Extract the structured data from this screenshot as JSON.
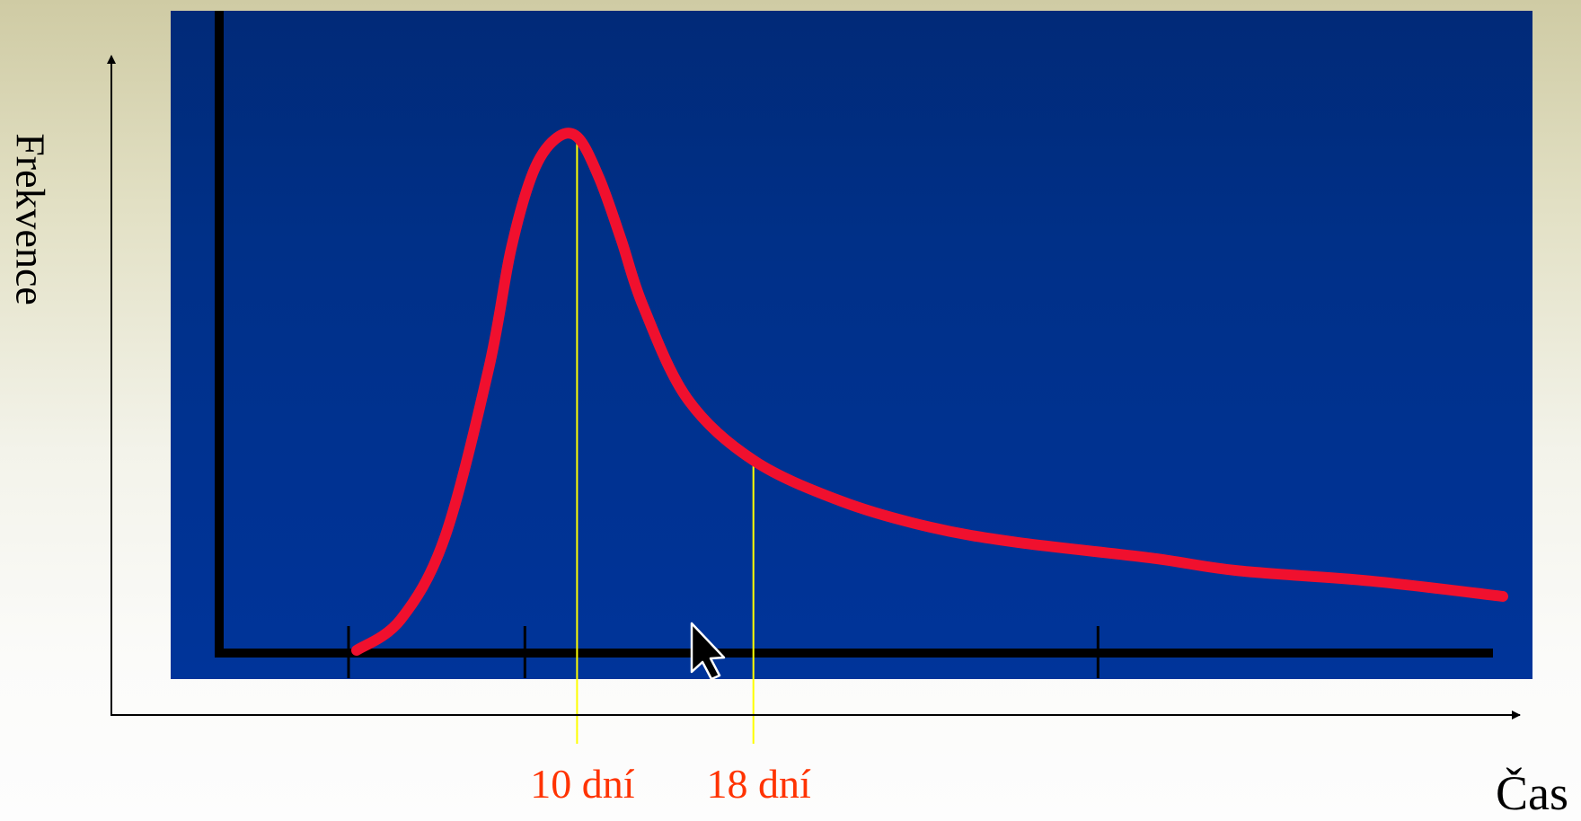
{
  "chart_data": {
    "type": "line",
    "title": "",
    "xlabel": "Čas",
    "ylabel": "Frekvence",
    "grid": false,
    "legend": null,
    "series": [
      {
        "points": [
          [
            0,
            0
          ],
          [
            2,
            6
          ],
          [
            4,
            22
          ],
          [
            6,
            55
          ],
          [
            7,
            78
          ],
          [
            8,
            93
          ],
          [
            9,
            99.5
          ],
          [
            10,
            100
          ],
          [
            11,
            92
          ],
          [
            12,
            80
          ],
          [
            13,
            67
          ],
          [
            15,
            49
          ],
          [
            18,
            37
          ],
          [
            22,
            29
          ],
          [
            26,
            24
          ],
          [
            30,
            21
          ],
          [
            36,
            18
          ],
          [
            40,
            15.5
          ],
          [
            46,
            13.5
          ],
          [
            52,
            10.5
          ]
        ]
      }
    ],
    "xlim": [
      0,
      52
    ],
    "ylim": [
      0,
      110
    ],
    "x_ticks": [
      0,
      8,
      34
    ],
    "markers": [
      {
        "x": 10,
        "label": "10 dní"
      },
      {
        "x": 18,
        "label": "18 dní"
      }
    ],
    "colors": {
      "plot_background": "#00308f",
      "curve": "#f0102e",
      "marker_line": "#ffff00",
      "marker_label": "#ff3300",
      "inner_axes": "#000000",
      "outer_axes": "#000000"
    }
  },
  "cursor": {
    "icon": "mouse-pointer-icon"
  }
}
